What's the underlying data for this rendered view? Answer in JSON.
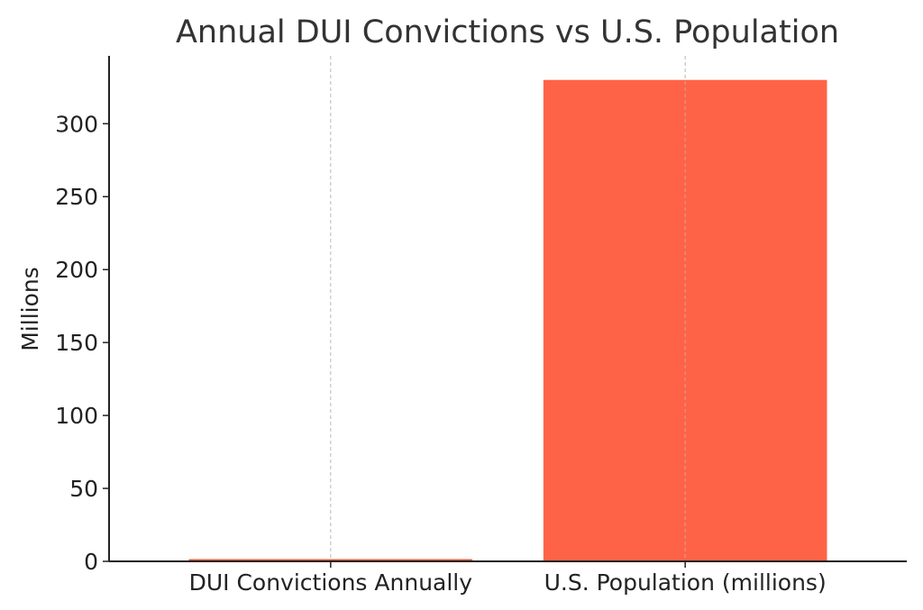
{
  "chart_data": {
    "type": "bar",
    "title": "Annual DUI Convictions vs U.S. Population",
    "xlabel": "",
    "ylabel": "Millions",
    "categories": [
      "DUI Convictions Annually",
      "U.S. Population (millions)"
    ],
    "values": [
      1.5,
      330
    ],
    "ylim": [
      0,
      346.5
    ],
    "yticks": [
      0,
      50,
      100,
      150,
      200,
      250,
      300
    ],
    "grid": "x-only, dashed",
    "legend": "none",
    "colors": {
      "bars": [
        "#FF5733",
        "#FF6347"
      ],
      "axis": "#222222",
      "grid": "#cccccc",
      "title": "#333333"
    }
  }
}
